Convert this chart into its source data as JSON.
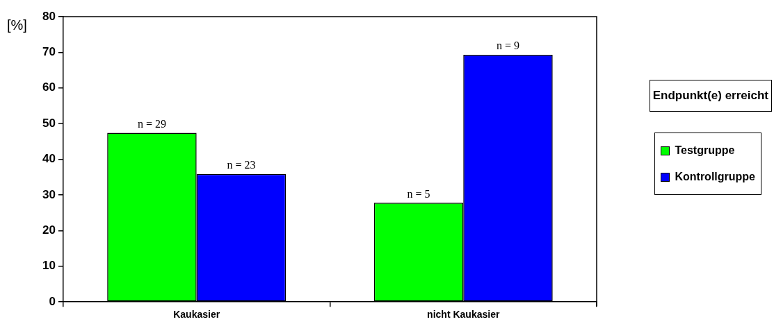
{
  "chart_data": {
    "type": "bar",
    "ylabel": "[%]",
    "legend_title": "Endpunkt(e) erreicht",
    "legend": "right",
    "grid": false,
    "categories": [
      "Kaukasier",
      "nicht Kaukasier"
    ],
    "series": [
      {
        "name": "Testgruppe",
        "color": "#00ff00",
        "values": [
          47.4,
          27.8
        ]
      },
      {
        "name": "Kontrollgruppe",
        "color": "#0000ff",
        "values": [
          35.9,
          69.3
        ]
      }
    ],
    "ylim": [
      0,
      80
    ],
    "yticks": [
      0,
      10,
      20,
      30,
      40,
      50,
      60,
      70,
      80
    ],
    "annotations": [
      {
        "text": "n = 29",
        "x": "Kaukasier",
        "y": 47.4
      },
      {
        "text": "n = 23",
        "x": "Kaukasier",
        "y": 35.9
      },
      {
        "text": "n = 5",
        "x": "nicht Kaukasier",
        "y": 27.8
      },
      {
        "text": "n = 9",
        "x": "nicht Kaukasier",
        "y": 69.3
      }
    ]
  }
}
